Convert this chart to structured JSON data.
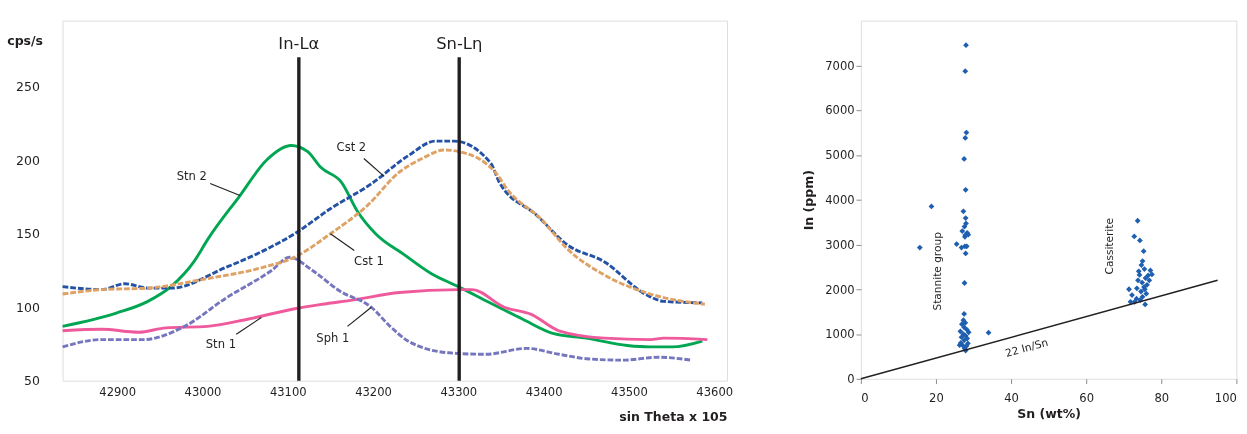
{
  "chart_data": [
    {
      "type": "line",
      "xlabel": "sin Theta x 105",
      "ylabel": "cps/s",
      "xlim": [
        42836,
        43615
      ],
      "ylim": [
        50,
        295
      ],
      "xticks": [
        42900,
        43000,
        43100,
        43200,
        43300,
        43400,
        43500,
        43600
      ],
      "yticks": [
        50,
        100,
        150,
        200,
        250
      ],
      "grid": false,
      "marker": "none",
      "series": [
        {
          "color": "#00a651",
          "line_style": "solid",
          "x": [
            42836,
            42899,
            42936,
            42963,
            42990,
            43006,
            43044,
            43075,
            43104,
            43123,
            43139,
            43163,
            43182,
            43203,
            43236,
            43268,
            43300,
            43337,
            43375,
            43412,
            43450,
            43498,
            43525,
            43551,
            43586
          ],
          "values": [
            87,
            96,
            104,
            114,
            131,
            146,
            176,
            200,
            210,
            206,
            195,
            185,
            165,
            150,
            136,
            123,
            114,
            103,
            92,
            82,
            79,
            74,
            73,
            73,
            77
          ]
        },
        {
          "color": "#ef5a9c",
          "line_style": "solid",
          "x": [
            42836,
            42882,
            42925,
            42957,
            43006,
            43054,
            43108,
            43140,
            43177,
            43231,
            43300,
            43316,
            43354,
            43386,
            43418,
            43471,
            43525,
            43541,
            43592
          ],
          "values": [
            84,
            85,
            83,
            86,
            87,
            92,
            99,
            102,
            105,
            110,
            112,
            112,
            100,
            95,
            84,
            79,
            78,
            79,
            78
          ]
        },
        {
          "color": "#7676bf",
          "line_style": "dashed",
          "x": [
            42836,
            42882,
            42931,
            42979,
            43027,
            43081,
            43102,
            43129,
            43161,
            43198,
            43220,
            43241,
            43289,
            43332,
            43380,
            43418,
            43450,
            43493,
            43535,
            43573
          ],
          "values": [
            73,
            78,
            78,
            87,
            106,
            125,
            134,
            125,
            111,
            100,
            87,
            77,
            69,
            68,
            72,
            68,
            65,
            64,
            66,
            64
          ]
        },
        {
          "color": "#2452a4",
          "line_style": "dashed",
          "x": [
            42836,
            42882,
            42909,
            42936,
            42963,
            43027,
            43070,
            43108,
            43150,
            43198,
            43241,
            43273,
            43295,
            43338,
            43348,
            43391,
            43429,
            43471,
            43519,
            43541,
            43586
          ],
          "values": [
            114,
            112,
            116,
            113,
            113,
            127,
            138,
            150,
            167,
            184,
            203,
            213,
            213,
            198,
            185,
            163,
            142,
            131,
            109,
            104,
            103
          ]
        },
        {
          "color": "#dfa265",
          "line_style": "dashed",
          "x": [
            42836,
            42882,
            42936,
            43001,
            43070,
            43108,
            43150,
            43193,
            43231,
            43257,
            43284,
            43300,
            43343,
            43359,
            43397,
            43429,
            43471,
            43525,
            43589
          ],
          "values": [
            109,
            112,
            113,
            119,
            127,
            134,
            150,
            169,
            192,
            201,
            207,
            206,
            192,
            179,
            160,
            139,
            122,
            109,
            102
          ]
        }
      ],
      "ref_lines": [
        {
          "axis": "x",
          "value": 43113,
          "label": "In-Lα",
          "color": "#231f20"
        },
        {
          "axis": "x",
          "value": 43301,
          "label": "Sn-Lη",
          "color": "#231f20"
        }
      ],
      "annotations": [
        {
          "text": "Stn 2",
          "x": 43044,
          "y": 176
        },
        {
          "text": "Cst 2",
          "x": 43213,
          "y": 189
        },
        {
          "text": "Cst 1",
          "x": 43150,
          "y": 150
        },
        {
          "text": "Stn 1",
          "x": 43069,
          "y": 93
        },
        {
          "text": "Sph 1",
          "x": 43198,
          "y": 100
        }
      ]
    },
    {
      "type": "scatter",
      "xlabel": "Sn (wt%)",
      "ylabel": "In (ppm)",
      "xlim": [
        0,
        100
      ],
      "ylim": [
        0,
        8000
      ],
      "xticks": [
        0,
        20,
        40,
        60,
        80,
        100
      ],
      "yticks": [
        0,
        1000,
        2000,
        3000,
        4000,
        5000,
        6000,
        7000
      ],
      "grid": false,
      "marker": "diamond",
      "series": [
        {
          "color": "#1f5fb0",
          "x": [
            28,
            27.8,
            28.1,
            27.8,
            27.5,
            27.9,
            18.8,
            27.3,
            27.9,
            28,
            27.6,
            27,
            28.3,
            27.8,
            28.6,
            27.7,
            25.5,
            27.7,
            28.2,
            26.8,
            15.7,
            27.9,
            27.6,
            27.5,
            27.3,
            27.8,
            26.9,
            27.5,
            28.2,
            26.5,
            28.7,
            34,
            27.3,
            27.9,
            26.8,
            28.3,
            27.5,
            26.6,
            28.5,
            27.2,
            28.1,
            26.3,
            27.6,
            27.9,
            73.7,
            72.8,
            74.3,
            75.3,
            75,
            74.7,
            75.5,
            77.1,
            76.5,
            74.2,
            75.8,
            73.8,
            74.9,
            76.2,
            75.4,
            73.5,
            71.4,
            74.6,
            76,
            72.2,
            75,
            73.4,
            71.8,
            72.9,
            74.4,
            75.7,
            76.8,
            77.5,
            74,
            75.6
          ],
          "values": [
            7450,
            6870,
            5500,
            5380,
            4910,
            4220,
            3850,
            3740,
            3590,
            3470,
            3400,
            3300,
            3260,
            3210,
            3220,
            3170,
            3010,
            2960,
            2960,
            2930,
            2930,
            2800,
            2140,
            1450,
            1310,
            1250,
            1220,
            1150,
            1100,
            1060,
            1040,
            1030,
            1000,
            960,
            930,
            900,
            860,
            800,
            790,
            740,
            730,
            750,
            680,
            630,
            3530,
            3180,
            3090,
            2850,
            2630,
            2540,
            2450,
            2420,
            2310,
            2320,
            2250,
            2200,
            2150,
            2100,
            2050,
            2020,
            2000,
            1950,
            1900,
            1870,
            1830,
            1790,
            1720,
            1720,
            1760,
            1660,
            2200,
            2330,
            2400,
            2000
          ]
        },
        {
          "type": "line",
          "marker": "none",
          "color": "#231f20",
          "line_style": "solid",
          "x": [
            0,
            95
          ],
          "values": [
            0,
            2200
          ]
        }
      ],
      "annotations": [
        "Stannite group",
        "Cassiterite",
        {
          "text": "22 In/Sn",
          "x": 44.2,
          "y": 1024
        }
      ]
    }
  ]
}
